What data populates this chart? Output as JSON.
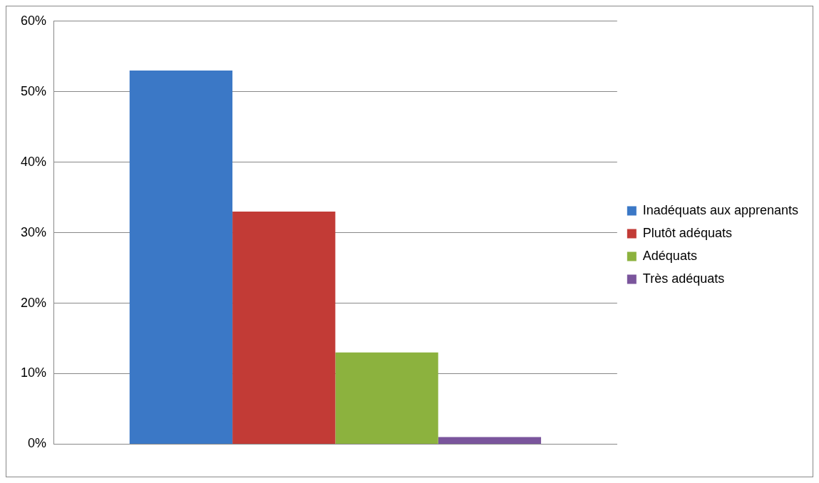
{
  "chart_data": {
    "type": "bar",
    "categories": [
      null
    ],
    "series": [
      {
        "name": "Inadéquats aux apprenants",
        "color": "#3b78c6",
        "values": [
          53
        ]
      },
      {
        "name": "Plutôt adéquats",
        "color": "#c23b36",
        "values": [
          33
        ]
      },
      {
        "name": "Adéquats",
        "color": "#8cb23e",
        "values": [
          13
        ]
      },
      {
        "name": "Très adéquats",
        "color": "#7a559c",
        "values": [
          1
        ]
      }
    ],
    "ylim": [
      0,
      60
    ],
    "yticks": [
      {
        "value": 0,
        "label": "0%"
      },
      {
        "value": 10,
        "label": "10%"
      },
      {
        "value": 20,
        "label": "20%"
      },
      {
        "value": 30,
        "label": "30%"
      },
      {
        "value": 40,
        "label": "40%"
      },
      {
        "value": 50,
        "label": "50%"
      },
      {
        "value": 60,
        "label": "60%"
      }
    ],
    "grid": "y",
    "legend": "right"
  }
}
